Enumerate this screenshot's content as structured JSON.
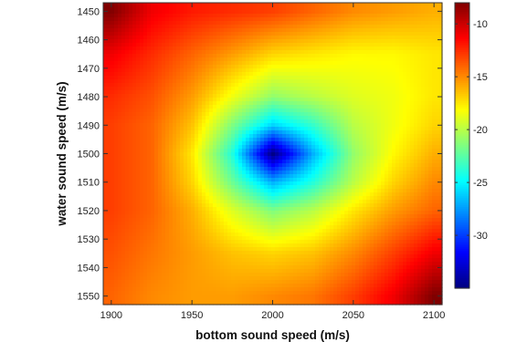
{
  "chart_data": {
    "type": "heatmap",
    "title": "",
    "xlabel": "bottom sound speed (m/s)",
    "ylabel": "water sound speed (m/s)",
    "xlim": [
      1895,
      2105
    ],
    "ylim": [
      1447,
      1553
    ],
    "y_axis_reversed": true,
    "x_ticks": [
      1900,
      1950,
      2000,
      2050,
      2100
    ],
    "x_tick_labels": [
      "1900",
      "1950",
      "2000",
      "2050",
      "2100"
    ],
    "y_ticks": [
      1450,
      1460,
      1470,
      1480,
      1490,
      1500,
      1510,
      1520,
      1530,
      1540,
      1550
    ],
    "y_tick_labels": [
      "1450",
      "1460",
      "1470",
      "1480",
      "1490",
      "1500",
      "1510",
      "1520",
      "1530",
      "1540",
      "1550"
    ],
    "colormap": "jet",
    "colorbar": {
      "range": [
        -35,
        -8
      ],
      "ticks": [
        -10,
        -15,
        -20,
        -25,
        -30
      ],
      "tick_labels": [
        "-10",
        "-15",
        "-20",
        "-25",
        "-30"
      ],
      "placement": "right"
    },
    "minimum": {
      "x": 2000,
      "y": 1499,
      "value": -35
    },
    "x": [
      1900,
      1925,
      1950,
      1975,
      2000,
      2025,
      2050,
      2075,
      2100
    ],
    "y": [
      1450,
      1465,
      1480,
      1490,
      1500,
      1510,
      1520,
      1535,
      1550
    ],
    "z": [
      [
        -8.0,
        -11.0,
        -12.0,
        -12.5,
        -13.0,
        -14.0,
        -15.0,
        -15.5,
        -16.0
      ],
      [
        -11.0,
        -12.5,
        -14.0,
        -15.5,
        -17.0,
        -17.5,
        -18.0,
        -18.0,
        -17.5
      ],
      [
        -12.5,
        -13.5,
        -15.5,
        -18.5,
        -21.0,
        -20.0,
        -19.0,
        -18.5,
        -17.5
      ],
      [
        -13.0,
        -14.0,
        -16.5,
        -21.5,
        -26.0,
        -23.5,
        -20.0,
        -18.5,
        -17.0
      ],
      [
        -13.0,
        -14.0,
        -17.5,
        -24.0,
        -35.0,
        -27.0,
        -21.0,
        -18.0,
        -16.0
      ],
      [
        -13.0,
        -14.0,
        -17.0,
        -22.0,
        -27.0,
        -24.0,
        -20.0,
        -17.0,
        -15.0
      ],
      [
        -13.0,
        -14.0,
        -16.0,
        -19.0,
        -21.5,
        -20.0,
        -17.5,
        -15.5,
        -14.0
      ],
      [
        -13.5,
        -14.5,
        -15.5,
        -16.5,
        -17.0,
        -16.5,
        -15.0,
        -13.0,
        -11.0
      ],
      [
        -14.0,
        -15.0,
        -15.5,
        -15.5,
        -15.0,
        -14.5,
        -13.0,
        -11.0,
        -8.0
      ]
    ]
  }
}
